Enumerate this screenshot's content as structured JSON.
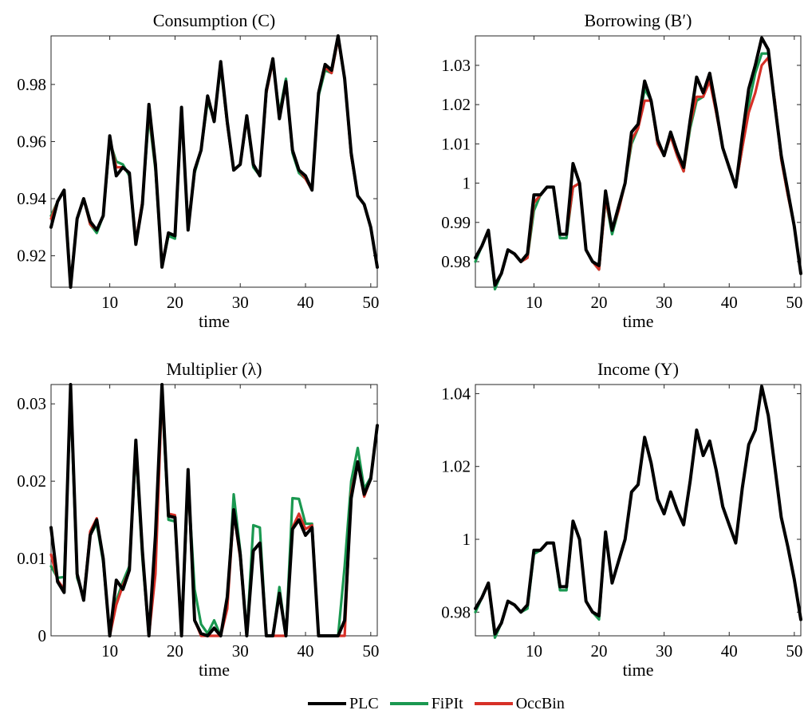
{
  "colors": {
    "PLC": "#000000",
    "FiPIt": "#1a9850",
    "OccBin": "#d73027"
  },
  "legend": [
    {
      "name": "PLC",
      "color": "#000000"
    },
    {
      "name": "FiPIt",
      "color": "#1a9850"
    },
    {
      "name": "OccBin",
      "color": "#d73027"
    }
  ],
  "chart_data": [
    {
      "type": "line",
      "title": "Consumption (C)",
      "xlabel": "time",
      "ylabel": "",
      "xlim": [
        1,
        51
      ],
      "ylim": [
        0.909,
        0.997
      ],
      "xticks": [
        10,
        20,
        30,
        40,
        50
      ],
      "yticks": [
        0.92,
        0.94,
        0.96,
        0.98
      ],
      "ytick_labels": [
        "0.92",
        "0.94",
        "0.96",
        "0.98"
      ],
      "x": [
        1,
        2,
        3,
        4,
        5,
        6,
        7,
        8,
        9,
        10,
        11,
        12,
        13,
        14,
        15,
        16,
        17,
        18,
        19,
        20,
        21,
        22,
        23,
        24,
        25,
        26,
        27,
        28,
        29,
        30,
        31,
        32,
        33,
        34,
        35,
        36,
        37,
        38,
        39,
        40,
        41,
        42,
        43,
        44,
        45,
        46,
        47,
        48,
        49,
        50,
        51
      ],
      "series": [
        {
          "name": "PLC",
          "values": [
            0.93,
            0.939,
            0.943,
            0.909,
            0.933,
            0.94,
            0.932,
            0.929,
            0.934,
            0.962,
            0.948,
            0.951,
            0.949,
            0.924,
            0.938,
            0.973,
            0.952,
            0.916,
            0.928,
            0.927,
            0.972,
            0.929,
            0.95,
            0.957,
            0.976,
            0.967,
            0.988,
            0.967,
            0.95,
            0.952,
            0.969,
            0.952,
            0.948,
            0.978,
            0.989,
            0.968,
            0.981,
            0.957,
            0.95,
            0.948,
            0.943,
            0.977,
            0.987,
            0.985,
            0.997,
            0.982,
            0.956,
            0.941,
            0.938,
            0.93,
            0.916
          ]
        },
        {
          "name": "FiPIt",
          "values": [
            0.934,
            0.939,
            0.943,
            0.91,
            0.933,
            0.94,
            0.931,
            0.928,
            0.934,
            0.96,
            0.953,
            0.952,
            0.948,
            0.924,
            0.939,
            0.969,
            0.95,
            0.916,
            0.927,
            0.926,
            0.971,
            0.93,
            0.949,
            0.957,
            0.974,
            0.968,
            0.986,
            0.966,
            0.95,
            0.952,
            0.968,
            0.951,
            0.948,
            0.977,
            0.988,
            0.97,
            0.982,
            0.956,
            0.949,
            0.947,
            0.943,
            0.976,
            0.985,
            0.984,
            0.996,
            0.982,
            0.955,
            0.941,
            0.938,
            0.93,
            0.916
          ]
        },
        {
          "name": "OccBin",
          "values": [
            0.933,
            0.939,
            0.943,
            0.91,
            0.933,
            0.94,
            0.931,
            0.929,
            0.934,
            0.961,
            0.951,
            0.951,
            0.949,
            0.925,
            0.939,
            0.971,
            0.951,
            0.917,
            0.928,
            0.927,
            0.971,
            0.93,
            0.95,
            0.957,
            0.975,
            0.968,
            0.987,
            0.966,
            0.95,
            0.952,
            0.968,
            0.952,
            0.948,
            0.977,
            0.988,
            0.969,
            0.981,
            0.957,
            0.95,
            0.947,
            0.943,
            0.977,
            0.986,
            0.984,
            0.996,
            0.982,
            0.955,
            0.941,
            0.938,
            0.93,
            0.916
          ]
        }
      ]
    },
    {
      "type": "line",
      "title": "Borrowing (B′)",
      "xlabel": "time",
      "ylabel": "",
      "xlim": [
        1,
        51
      ],
      "ylim": [
        0.9735,
        1.0375
      ],
      "xticks": [
        10,
        20,
        30,
        40,
        50
      ],
      "yticks": [
        0.98,
        0.99,
        1.0,
        1.01,
        1.02,
        1.03
      ],
      "ytick_labels": [
        "0.98",
        "0.99",
        "1",
        "1.01",
        "1.02",
        "1.03"
      ],
      "x": [
        1,
        2,
        3,
        4,
        5,
        6,
        7,
        8,
        9,
        10,
        11,
        12,
        13,
        14,
        15,
        16,
        17,
        18,
        19,
        20,
        21,
        22,
        23,
        24,
        25,
        26,
        27,
        28,
        29,
        30,
        31,
        32,
        33,
        34,
        35,
        36,
        37,
        38,
        39,
        40,
        41,
        42,
        43,
        44,
        45,
        46,
        47,
        48,
        49,
        50,
        51
      ],
      "series": [
        {
          "name": "PLC",
          "values": [
            0.981,
            0.984,
            0.988,
            0.974,
            0.977,
            0.983,
            0.982,
            0.98,
            0.982,
            0.997,
            0.997,
            0.999,
            0.999,
            0.987,
            0.987,
            1.005,
            1.0,
            0.983,
            0.98,
            0.979,
            0.998,
            0.988,
            0.994,
            1.0,
            1.013,
            1.015,
            1.026,
            1.021,
            1.011,
            1.007,
            1.013,
            1.008,
            1.004,
            1.016,
            1.027,
            1.023,
            1.028,
            1.019,
            1.009,
            1.004,
            0.999,
            1.012,
            1.024,
            1.03,
            1.037,
            1.034,
            1.02,
            1.007,
            0.998,
            0.989,
            0.977
          ]
        },
        {
          "name": "FiPIt",
          "values": [
            0.98,
            0.984,
            0.988,
            0.973,
            0.977,
            0.983,
            0.982,
            0.98,
            0.981,
            0.993,
            0.997,
            0.999,
            0.999,
            0.986,
            0.986,
            0.999,
            1.0,
            0.983,
            0.98,
            0.978,
            0.996,
            0.987,
            0.993,
            1.0,
            1.01,
            1.014,
            1.024,
            1.021,
            1.01,
            1.007,
            1.012,
            1.007,
            1.003,
            1.014,
            1.021,
            1.022,
            1.027,
            1.018,
            1.009,
            1.004,
            0.999,
            1.009,
            1.02,
            1.028,
            1.033,
            1.033,
            1.021,
            1.006,
            0.997,
            0.989,
            0.977
          ]
        },
        {
          "name": "OccBin",
          "values": [
            0.981,
            0.984,
            0.988,
            0.974,
            0.977,
            0.983,
            0.982,
            0.98,
            0.981,
            0.995,
            0.997,
            0.999,
            0.999,
            0.987,
            0.987,
            0.999,
            1.0,
            0.983,
            0.98,
            0.978,
            0.996,
            0.988,
            0.993,
            1.0,
            1.011,
            1.014,
            1.021,
            1.021,
            1.01,
            1.007,
            1.012,
            1.007,
            1.003,
            1.015,
            1.022,
            1.022,
            1.026,
            1.018,
            1.009,
            1.004,
            0.999,
            1.009,
            1.018,
            1.023,
            1.03,
            1.032,
            1.021,
            1.006,
            0.997,
            0.989,
            0.977
          ]
        }
      ]
    },
    {
      "type": "line",
      "title": "Multiplier (λ)",
      "xlabel": "time",
      "ylabel": "",
      "xlim": [
        1,
        51
      ],
      "ylim": [
        0,
        0.0325
      ],
      "xticks": [
        10,
        20,
        30,
        40,
        50
      ],
      "yticks": [
        0,
        0.01,
        0.02,
        0.03
      ],
      "ytick_labels": [
        "0",
        "0.01",
        "0.02",
        "0.03"
      ],
      "x": [
        1,
        2,
        3,
        4,
        5,
        6,
        7,
        8,
        9,
        10,
        11,
        12,
        13,
        14,
        15,
        16,
        17,
        18,
        19,
        20,
        21,
        22,
        23,
        24,
        25,
        26,
        27,
        28,
        29,
        30,
        31,
        32,
        33,
        34,
        35,
        36,
        37,
        38,
        39,
        40,
        41,
        42,
        43,
        44,
        45,
        46,
        47,
        48,
        49,
        50,
        51
      ],
      "series": [
        {
          "name": "PLC",
          "values": [
            0.014,
            0.007,
            0.0056,
            0.0325,
            0.008,
            0.0046,
            0.013,
            0.015,
            0.01,
            0.0,
            0.0072,
            0.006,
            0.0085,
            0.0253,
            0.011,
            0.0,
            0.013,
            0.0325,
            0.0155,
            0.0153,
            0.0,
            0.0215,
            0.002,
            0.0003,
            0.0,
            0.001,
            0.0,
            0.005,
            0.0163,
            0.0105,
            0.0,
            0.011,
            0.012,
            0.0,
            0.0,
            0.0055,
            0.0,
            0.0138,
            0.015,
            0.013,
            0.014,
            0.0,
            0.0,
            0.0,
            0.0,
            0.002,
            0.0178,
            0.0225,
            0.0183,
            0.0203,
            0.0272
          ]
        },
        {
          "name": "FiPIt",
          "values": [
            0.009,
            0.0075,
            0.0076,
            0.031,
            0.0075,
            0.005,
            0.013,
            0.0145,
            0.0095,
            0.0,
            0.0045,
            0.007,
            0.009,
            0.024,
            0.01,
            0.0,
            0.012,
            0.031,
            0.015,
            0.0148,
            0.0,
            0.02,
            0.006,
            0.0015,
            0.0003,
            0.002,
            0.0,
            0.004,
            0.0183,
            0.011,
            0.0,
            0.0143,
            0.014,
            0.0,
            0.0,
            0.0063,
            0.0,
            0.0178,
            0.0177,
            0.0145,
            0.0145,
            0.0,
            0.0,
            0.0,
            0.0,
            0.009,
            0.02,
            0.0243,
            0.019,
            0.0205,
            0.027
          ]
        },
        {
          "name": "OccBin",
          "values": [
            0.0105,
            0.0072,
            0.006,
            0.0318,
            0.0078,
            0.0048,
            0.0135,
            0.0152,
            0.0098,
            0.0,
            0.004,
            0.0065,
            0.0085,
            0.0245,
            0.0105,
            0.0,
            0.008,
            0.0315,
            0.0158,
            0.0156,
            0.0,
            0.0205,
            0.002,
            0.0,
            0.0,
            0.0,
            0.0,
            0.0035,
            0.016,
            0.01,
            0.0,
            0.011,
            0.012,
            0.0,
            0.0,
            0.0,
            0.0,
            0.014,
            0.0158,
            0.0138,
            0.0143,
            0.0,
            0.0,
            0.0,
            0.0,
            0.0,
            0.0185,
            0.0225,
            0.018,
            0.0203,
            0.0272
          ]
        }
      ]
    },
    {
      "type": "line",
      "title": "Income (Y)",
      "xlabel": "time",
      "ylabel": "",
      "xlim": [
        1,
        51
      ],
      "ylim": [
        0.9735,
        1.0425
      ],
      "xticks": [
        10,
        20,
        30,
        40,
        50
      ],
      "yticks": [
        0.98,
        1.0,
        1.02,
        1.04
      ],
      "ytick_labels": [
        "0.98",
        "1",
        "1.02",
        "1.04"
      ],
      "x": [
        1,
        2,
        3,
        4,
        5,
        6,
        7,
        8,
        9,
        10,
        11,
        12,
        13,
        14,
        15,
        16,
        17,
        18,
        19,
        20,
        21,
        22,
        23,
        24,
        25,
        26,
        27,
        28,
        29,
        30,
        31,
        32,
        33,
        34,
        35,
        36,
        37,
        38,
        39,
        40,
        41,
        42,
        43,
        44,
        45,
        46,
        47,
        48,
        49,
        50,
        51
      ],
      "series": [
        {
          "name": "PLC",
          "values": [
            0.981,
            0.984,
            0.988,
            0.974,
            0.977,
            0.983,
            0.982,
            0.98,
            0.982,
            0.997,
            0.997,
            0.999,
            0.999,
            0.987,
            0.987,
            1.005,
            1.0,
            0.983,
            0.98,
            0.979,
            1.002,
            0.988,
            0.994,
            1.0,
            1.013,
            1.015,
            1.028,
            1.021,
            1.011,
            1.007,
            1.013,
            1.008,
            1.004,
            1.016,
            1.03,
            1.023,
            1.027,
            1.019,
            1.009,
            1.004,
            0.999,
            1.014,
            1.026,
            1.03,
            1.042,
            1.034,
            1.02,
            1.006,
            0.998,
            0.989,
            0.978
          ]
        },
        {
          "name": "FiPIt",
          "values": [
            0.98,
            0.984,
            0.988,
            0.973,
            0.977,
            0.983,
            0.982,
            0.98,
            0.981,
            0.996,
            0.997,
            0.999,
            0.999,
            0.986,
            0.986,
            1.005,
            1.0,
            0.983,
            0.98,
            0.978,
            1.002,
            0.988,
            0.994,
            1.0,
            1.013,
            1.015,
            1.028,
            1.021,
            1.011,
            1.007,
            1.013,
            1.008,
            1.004,
            1.016,
            1.03,
            1.023,
            1.027,
            1.019,
            1.009,
            1.004,
            0.999,
            1.014,
            1.026,
            1.03,
            1.042,
            1.034,
            1.02,
            1.006,
            0.998,
            0.989,
            0.978
          ]
        },
        {
          "name": "OccBin",
          "values": [
            0.981,
            0.984,
            0.988,
            0.974,
            0.977,
            0.983,
            0.982,
            0.98,
            0.982,
            0.997,
            0.997,
            0.999,
            0.999,
            0.987,
            0.987,
            1.005,
            1.0,
            0.983,
            0.98,
            0.979,
            1.002,
            0.988,
            0.994,
            1.0,
            1.013,
            1.015,
            1.028,
            1.021,
            1.011,
            1.007,
            1.013,
            1.008,
            1.004,
            1.016,
            1.03,
            1.023,
            1.027,
            1.019,
            1.009,
            1.004,
            0.999,
            1.014,
            1.026,
            1.03,
            1.042,
            1.034,
            1.02,
            1.006,
            0.998,
            0.989,
            0.978
          ]
        }
      ]
    }
  ]
}
